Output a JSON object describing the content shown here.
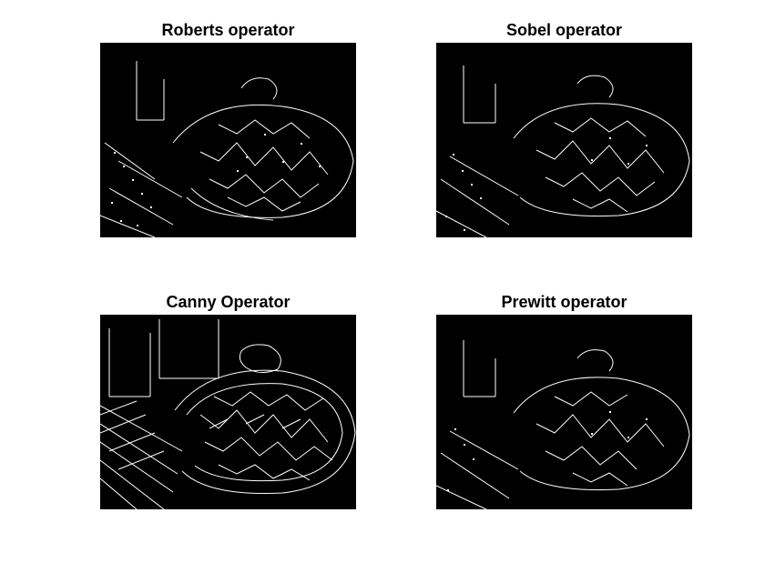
{
  "figure": {
    "background": "#ffffff",
    "panels": [
      {
        "title": "Roberts operator"
      },
      {
        "title": "Sobel operator"
      },
      {
        "title": "Canny Operator"
      },
      {
        "title": "Prewitt operator"
      }
    ]
  }
}
